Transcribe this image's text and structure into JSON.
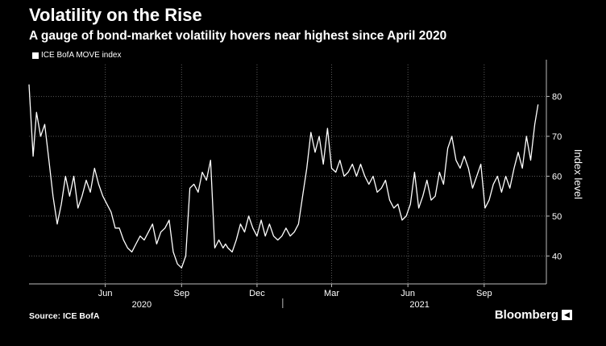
{
  "chart_data": {
    "type": "line",
    "title": "Volatility on the Rise",
    "subtitle": "A gauge of bond-market volatility hovers near highest since April 2020",
    "ylabel": "Index level",
    "ylim": [
      33,
      88
    ],
    "yticks": [
      40,
      50,
      60,
      70,
      80
    ],
    "xlim": [
      "2020-03-01",
      "2021-11-15"
    ],
    "month_ticks": [
      {
        "date": "2020-06-01",
        "label": "Jun"
      },
      {
        "date": "2020-09-01",
        "label": "Sep"
      },
      {
        "date": "2020-12-01",
        "label": "Dec"
      },
      {
        "date": "2021-03-01",
        "label": "Mar"
      },
      {
        "date": "2021-06-01",
        "label": "Jun"
      },
      {
        "date": "2021-09-01",
        "label": "Sep"
      }
    ],
    "year_labels": [
      {
        "date": "2020-07-15",
        "label": "2020"
      },
      {
        "date": "2021-06-15",
        "label": "2021"
      }
    ],
    "year_divider": "2021-01-01",
    "grid": true,
    "series": [
      {
        "name": "ICE BofA MOVE index",
        "color": "#ffffff",
        "x": [
          "2020-03-01",
          "2020-03-06",
          "2020-03-10",
          "2020-03-15",
          "2020-03-20",
          "2020-03-25",
          "2020-03-30",
          "2020-04-04",
          "2020-04-09",
          "2020-04-14",
          "2020-04-19",
          "2020-04-24",
          "2020-04-29",
          "2020-05-04",
          "2020-05-09",
          "2020-05-14",
          "2020-05-19",
          "2020-05-24",
          "2020-05-29",
          "2020-06-03",
          "2020-06-08",
          "2020-06-13",
          "2020-06-18",
          "2020-06-23",
          "2020-06-28",
          "2020-07-03",
          "2020-07-08",
          "2020-07-13",
          "2020-07-18",
          "2020-07-23",
          "2020-07-28",
          "2020-08-02",
          "2020-08-07",
          "2020-08-12",
          "2020-08-17",
          "2020-08-22",
          "2020-08-27",
          "2020-09-01",
          "2020-09-06",
          "2020-09-11",
          "2020-09-16",
          "2020-09-21",
          "2020-09-26",
          "2020-10-01",
          "2020-10-06",
          "2020-10-11",
          "2020-10-16",
          "2020-10-21",
          "2020-10-24",
          "2020-10-27",
          "2020-11-01",
          "2020-11-06",
          "2020-11-11",
          "2020-11-16",
          "2020-11-21",
          "2020-11-26",
          "2020-12-01",
          "2020-12-06",
          "2020-12-11",
          "2020-12-16",
          "2020-12-21",
          "2020-12-26",
          "2020-12-31",
          "2021-01-05",
          "2021-01-10",
          "2021-01-15",
          "2021-01-20",
          "2021-01-25",
          "2021-01-30",
          "2021-02-04",
          "2021-02-09",
          "2021-02-14",
          "2021-02-19",
          "2021-02-24",
          "2021-03-01",
          "2021-03-06",
          "2021-03-11",
          "2021-03-16",
          "2021-03-21",
          "2021-03-26",
          "2021-03-31",
          "2021-04-05",
          "2021-04-10",
          "2021-04-15",
          "2021-04-20",
          "2021-04-25",
          "2021-04-30",
          "2021-05-05",
          "2021-05-10",
          "2021-05-15",
          "2021-05-20",
          "2021-05-25",
          "2021-05-30",
          "2021-06-04",
          "2021-06-09",
          "2021-06-14",
          "2021-06-19",
          "2021-06-24",
          "2021-06-29",
          "2021-07-04",
          "2021-07-09",
          "2021-07-14",
          "2021-07-19",
          "2021-07-24",
          "2021-07-29",
          "2021-08-03",
          "2021-08-08",
          "2021-08-13",
          "2021-08-18",
          "2021-08-23",
          "2021-08-28",
          "2021-09-02",
          "2021-09-07",
          "2021-09-12",
          "2021-09-17",
          "2021-09-22",
          "2021-09-27",
          "2021-10-02",
          "2021-10-07",
          "2021-10-12",
          "2021-10-17",
          "2021-10-22",
          "2021-10-27",
          "2021-11-01",
          "2021-11-05"
        ],
        "y": [
          83,
          65,
          76,
          70,
          73,
          64,
          55,
          48,
          53,
          60,
          55,
          60,
          52,
          55,
          59,
          56,
          62,
          58,
          55,
          53,
          51,
          47,
          47,
          44,
          42,
          41,
          43,
          45,
          44,
          46,
          48,
          43,
          46,
          47,
          49,
          41,
          38,
          37,
          40,
          57,
          58,
          56,
          61,
          59,
          64,
          42,
          44,
          42,
          43,
          42,
          41,
          44,
          48,
          46,
          50,
          47,
          45,
          49,
          45,
          48,
          45,
          44,
          45,
          47,
          45,
          46,
          48,
          55,
          62,
          71,
          66,
          70,
          63,
          72,
          62,
          61,
          64,
          60,
          61,
          63,
          60,
          63,
          60,
          58,
          60,
          56,
          57,
          59,
          54,
          52,
          53,
          49,
          50,
          53,
          61,
          52,
          55,
          59,
          54,
          55,
          61,
          58,
          67,
          70,
          64,
          62,
          65,
          62,
          57,
          60,
          63,
          52,
          54,
          58,
          60,
          56,
          60,
          57,
          62,
          66,
          62,
          70,
          64,
          73,
          78
        ]
      }
    ]
  },
  "legend": {
    "label": "ICE BofA MOVE index"
  },
  "source": "Source: ICE BofA",
  "brand": {
    "name": "Bloomberg",
    "mark": "🔊"
  }
}
